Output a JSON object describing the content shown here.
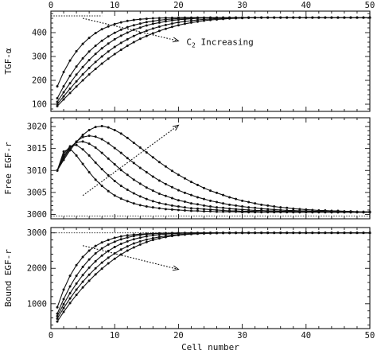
{
  "chart_data": [
    {
      "type": "line",
      "title": "",
      "xlabel": "",
      "ylabel": "TGF-α",
      "xlim": [
        0,
        50
      ],
      "ylim": [
        70,
        490
      ],
      "top_ticks": [
        "0",
        "10",
        "20",
        "30",
        "40",
        "50"
      ],
      "x_ticks": [
        0,
        10,
        20,
        30,
        40,
        50
      ],
      "y_ticks": [
        100,
        200,
        300,
        400
      ],
      "y_tick_labels": [
        "100",
        "200",
        "300",
        "400"
      ],
      "annotation": {
        "label": "C",
        "sub": "2",
        "rest": " Increasing",
        "from": [
          5,
          460
        ],
        "to": [
          20,
          365
        ]
      },
      "reference_line": {
        "y": 470,
        "x_range": [
          0,
          8
        ]
      },
      "x": [
        1,
        2,
        3,
        4,
        5,
        6,
        7,
        8,
        9,
        10,
        11,
        12,
        13,
        14,
        15,
        16,
        17,
        18,
        19,
        20,
        21,
        22,
        23,
        24,
        25,
        26,
        27,
        28,
        29,
        30,
        31,
        32,
        33,
        34,
        35,
        36,
        37,
        38,
        39,
        40,
        41,
        42,
        43,
        44,
        45,
        46,
        47,
        48,
        49,
        50
      ],
      "series": [
        {
          "values": [
            175,
            235,
            283,
            322,
            353,
            378,
            398,
            414,
            426,
            436,
            443,
            449,
            453,
            456,
            458,
            460,
            461,
            462,
            462,
            463,
            463,
            463,
            463,
            463,
            463,
            463,
            463,
            463,
            463,
            463,
            463,
            463,
            463,
            463,
            463,
            463,
            463,
            463,
            463,
            463,
            463,
            463,
            463,
            463,
            463,
            463,
            463,
            463,
            463,
            463
          ]
        },
        {
          "values": [
            125,
            175,
            219,
            258,
            292,
            321,
            345,
            366,
            384,
            399,
            412,
            423,
            431,
            438,
            444,
            448,
            452,
            455,
            457,
            459,
            460,
            461,
            462,
            462,
            463,
            463,
            463,
            463,
            463,
            463,
            463,
            463,
            463,
            463,
            463,
            463,
            463,
            463,
            463,
            463,
            463,
            463,
            463,
            463,
            463,
            463,
            463,
            463,
            463,
            463
          ]
        },
        {
          "values": [
            110,
            150,
            188,
            224,
            256,
            285,
            311,
            334,
            354,
            372,
            387,
            400,
            412,
            421,
            430,
            437,
            442,
            447,
            451,
            454,
            456,
            458,
            460,
            461,
            462,
            462,
            463,
            463,
            463,
            463,
            463,
            463,
            463,
            463,
            463,
            463,
            463,
            463,
            463,
            463,
            463,
            463,
            463,
            463,
            463,
            463,
            463,
            463,
            463,
            463
          ]
        },
        {
          "values": [
            100,
            133,
            165,
            196,
            225,
            252,
            277,
            300,
            321,
            340,
            357,
            372,
            386,
            398,
            408,
            417,
            425,
            432,
            438,
            443,
            447,
            450,
            453,
            455,
            457,
            459,
            460,
            461,
            462,
            462,
            463,
            463,
            463,
            463,
            463,
            463,
            463,
            463,
            463,
            463,
            463,
            463,
            463,
            463,
            463,
            463,
            463,
            463,
            463,
            463
          ]
        },
        {
          "values": [
            92,
            120,
            147,
            174,
            200,
            225,
            248,
            270,
            291,
            310,
            328,
            345,
            360,
            374,
            386,
            397,
            407,
            416,
            424,
            431,
            437,
            442,
            446,
            450,
            453,
            455,
            457,
            459,
            460,
            461,
            462,
            462,
            463,
            463,
            463,
            463,
            463,
            463,
            463,
            463,
            463,
            463,
            463,
            463,
            463,
            463,
            463,
            463,
            463,
            463
          ]
        }
      ]
    },
    {
      "type": "line",
      "title": "",
      "xlabel": "",
      "ylabel": "Free EGF-r",
      "xlim": [
        0,
        50
      ],
      "ylim": [
        2999,
        3022
      ],
      "x_ticks": [
        0,
        10,
        20,
        30,
        40,
        50
      ],
      "y_ticks": [
        3000,
        3005,
        3010,
        3015,
        3020
      ],
      "y_tick_labels": [
        "3000",
        "3005",
        "3010",
        "3015",
        "3020"
      ],
      "annotation": {
        "label": "",
        "from": [
          5,
          3004.3
        ],
        "to": [
          20,
          3020.3
        ]
      },
      "reference_line": {
        "y": 2999.6,
        "x_range": [
          0,
          50
        ]
      },
      "x": [
        1,
        2,
        3,
        4,
        5,
        6,
        7,
        8,
        9,
        10,
        11,
        12,
        13,
        14,
        15,
        16,
        17,
        18,
        19,
        20,
        21,
        22,
        23,
        24,
        25,
        26,
        27,
        28,
        29,
        30,
        31,
        32,
        33,
        34,
        35,
        36,
        37,
        38,
        39,
        40,
        41,
        42,
        43,
        44,
        45,
        46,
        47,
        48,
        49,
        50
      ],
      "series": [
        {
          "values": [
            3010.0,
            3014.3,
            3015.0,
            3013.4,
            3011.5,
            3009.6,
            3007.9,
            3006.5,
            3005.3,
            3004.3,
            3003.6,
            3003.0,
            3002.5,
            3002.1,
            3001.8,
            3001.6,
            3001.4,
            3001.2,
            3001.1,
            3001.0,
            3000.9,
            3000.8,
            3000.8,
            3000.7,
            3000.7,
            3000.6,
            3000.6,
            3000.6,
            3000.6,
            3000.5,
            3000.5,
            3000.5,
            3000.5,
            3000.5,
            3000.5,
            3000.5,
            3000.5,
            3000.5,
            3000.5,
            3000.5,
            3000.5,
            3000.5,
            3000.5,
            3000.5,
            3000.5,
            3000.5,
            3000.5,
            3000.5,
            3000.5,
            3000.5
          ]
        },
        {
          "values": [
            3010.0,
            3013.7,
            3015.5,
            3015.8,
            3014.8,
            3013.4,
            3011.8,
            3010.3,
            3008.9,
            3007.6,
            3006.5,
            3005.6,
            3004.8,
            3004.1,
            3003.5,
            3003.0,
            3002.6,
            3002.3,
            3002.0,
            3001.8,
            3001.6,
            3001.4,
            3001.3,
            3001.2,
            3001.1,
            3001.0,
            3000.9,
            3000.8,
            3000.8,
            3000.7,
            3000.7,
            3000.7,
            3000.6,
            3000.6,
            3000.6,
            3000.6,
            3000.6,
            3000.5,
            3000.5,
            3000.5,
            3000.5,
            3000.5,
            3000.5,
            3000.5,
            3000.5,
            3000.5,
            3000.5,
            3000.5,
            3000.5,
            3000.5
          ]
        },
        {
          "values": [
            3010.0,
            3013.2,
            3015.3,
            3016.4,
            3016.6,
            3016.1,
            3015.2,
            3014.0,
            3012.7,
            3011.4,
            3010.1,
            3009.0,
            3007.9,
            3007.0,
            3006.1,
            3005.4,
            3004.7,
            3004.2,
            3003.7,
            3003.2,
            3002.9,
            3002.5,
            3002.3,
            3002.0,
            3001.8,
            3001.6,
            3001.5,
            3001.3,
            3001.2,
            3001.1,
            3001.0,
            3000.9,
            3000.9,
            3000.8,
            3000.8,
            3000.7,
            3000.7,
            3000.7,
            3000.6,
            3000.6,
            3000.6,
            3000.6,
            3000.6,
            3000.5,
            3000.5,
            3000.5,
            3000.5,
            3000.5,
            3000.5,
            3000.5
          ]
        },
        {
          "values": [
            3010.0,
            3012.8,
            3015.0,
            3016.6,
            3017.6,
            3017.9,
            3017.7,
            3017.1,
            3016.2,
            3015.1,
            3014.0,
            3012.8,
            3011.7,
            3010.6,
            3009.6,
            3008.6,
            3007.7,
            3006.9,
            3006.2,
            3005.5,
            3004.9,
            3004.4,
            3003.9,
            3003.5,
            3003.1,
            3002.8,
            3002.5,
            3002.2,
            3002.0,
            3001.8,
            3001.6,
            3001.5,
            3001.3,
            3001.2,
            3001.1,
            3001.0,
            3000.9,
            3000.9,
            3000.8,
            3000.8,
            3000.7,
            3000.7,
            3000.7,
            3000.6,
            3000.6,
            3000.6,
            3000.6,
            3000.6,
            3000.5,
            3000.5
          ]
        },
        {
          "values": [
            3010.0,
            3012.4,
            3014.6,
            3016.5,
            3018.1,
            3019.2,
            3019.9,
            3020.1,
            3019.8,
            3019.2,
            3018.4,
            3017.4,
            3016.3,
            3015.2,
            3014.1,
            3013.0,
            3011.9,
            3010.9,
            3009.9,
            3009.0,
            3008.2,
            3007.4,
            3006.7,
            3006.0,
            3005.4,
            3004.9,
            3004.4,
            3003.9,
            3003.5,
            3003.1,
            3002.8,
            3002.5,
            3002.2,
            3002.0,
            3001.8,
            3001.6,
            3001.5,
            3001.3,
            3001.2,
            3001.1,
            3001.0,
            3000.9,
            3000.9,
            3000.8,
            3000.8,
            3000.7,
            3000.7,
            3000.6,
            3000.6,
            3000.6
          ]
        }
      ]
    },
    {
      "type": "line",
      "title": "",
      "xlabel": "Cell number",
      "ylabel": "Bound EGF-r",
      "xlim": [
        0,
        50
      ],
      "ylim": [
        300,
        3150
      ],
      "x_ticks": [
        0,
        10,
        20,
        30,
        40,
        50
      ],
      "x_tick_labels": [
        "0",
        "10",
        "20",
        "30",
        "40",
        "50"
      ],
      "y_ticks": [
        1000,
        2000,
        3000
      ],
      "y_tick_labels": [
        "1000",
        "2000",
        "3000"
      ],
      "annotation": {
        "label": "",
        "from": [
          5,
          2640
        ],
        "to": [
          20,
          1970
        ]
      },
      "reference_line": {
        "y": 3000,
        "x_range": [
          0,
          50
        ]
      },
      "x": [
        1,
        2,
        3,
        4,
        5,
        6,
        7,
        8,
        9,
        10,
        11,
        12,
        13,
        14,
        15,
        16,
        17,
        18,
        19,
        20,
        21,
        22,
        23,
        24,
        25,
        26,
        27,
        28,
        29,
        30,
        31,
        32,
        33,
        34,
        35,
        36,
        37,
        38,
        39,
        40,
        41,
        42,
        43,
        44,
        45,
        46,
        47,
        48,
        49,
        50
      ],
      "series": [
        {
          "values": [
            900,
            1400,
            1790,
            2090,
            2320,
            2500,
            2630,
            2730,
            2800,
            2860,
            2900,
            2930,
            2950,
            2965,
            2975,
            2983,
            2988,
            2992,
            2995,
            2997,
            2998,
            2999,
            2999,
            3000,
            3000,
            3000,
            3000,
            3000,
            3000,
            3000,
            3000,
            3000,
            3000,
            3000,
            3000,
            3000,
            3000,
            3000,
            3000,
            3000,
            3000,
            3000,
            3000,
            3000,
            3000,
            3000,
            3000,
            3000,
            3000,
            3000
          ]
        },
        {
          "values": [
            720,
            1130,
            1490,
            1790,
            2040,
            2250,
            2420,
            2560,
            2670,
            2750,
            2820,
            2870,
            2910,
            2940,
            2960,
            2973,
            2982,
            2988,
            2992,
            2995,
            2997,
            2998,
            2999,
            2999,
            3000,
            3000,
            3000,
            3000,
            3000,
            3000,
            3000,
            3000,
            3000,
            3000,
            3000,
            3000,
            3000,
            3000,
            3000,
            3000,
            3000,
            3000,
            3000,
            3000,
            3000,
            3000,
            3000,
            3000,
            3000,
            3000
          ]
        },
        {
          "values": [
            650,
            990,
            1300,
            1570,
            1810,
            2020,
            2200,
            2360,
            2490,
            2600,
            2690,
            2760,
            2820,
            2865,
            2900,
            2928,
            2950,
            2965,
            2976,
            2984,
            2990,
            2994,
            2996,
            2998,
            2999,
            2999,
            3000,
            3000,
            3000,
            3000,
            3000,
            3000,
            3000,
            3000,
            3000,
            3000,
            3000,
            3000,
            3000,
            3000,
            3000,
            3000,
            3000,
            3000,
            3000,
            3000,
            3000,
            3000,
            3000,
            3000
          ]
        },
        {
          "values": [
            580,
            880,
            1150,
            1400,
            1620,
            1820,
            2000,
            2160,
            2300,
            2420,
            2530,
            2620,
            2700,
            2760,
            2810,
            2850,
            2885,
            2912,
            2933,
            2950,
            2963,
            2973,
            2980,
            2986,
            2990,
            2993,
            2995,
            2997,
            2998,
            2999,
            2999,
            3000,
            3000,
            3000,
            3000,
            3000,
            3000,
            3000,
            3000,
            3000,
            3000,
            3000,
            3000,
            3000,
            3000,
            3000,
            3000,
            3000,
            3000,
            3000
          ]
        },
        {
          "values": [
            500,
            770,
            1020,
            1250,
            1460,
            1650,
            1830,
            1990,
            2140,
            2270,
            2390,
            2500,
            2590,
            2670,
            2740,
            2800,
            2845,
            2882,
            2912,
            2935,
            2952,
            2965,
            2975,
            2982,
            2988,
            2992,
            2995,
            2997,
            2998,
            2999,
            2999,
            3000,
            3000,
            3000,
            3000,
            3000,
            3000,
            3000,
            3000,
            3000,
            3000,
            3000,
            3000,
            3000,
            3000,
            3000,
            3000,
            3000,
            3000,
            3000
          ]
        }
      ]
    }
  ]
}
